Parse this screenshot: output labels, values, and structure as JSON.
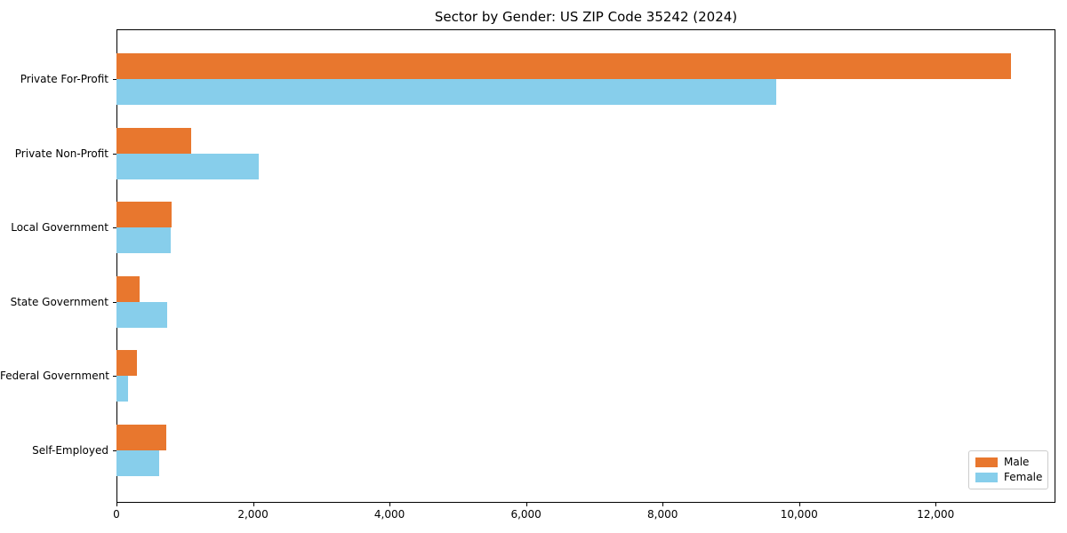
{
  "chart_data": {
    "type": "bar",
    "orientation": "horizontal",
    "title": "Sector by Gender: US ZIP Code 35242 (2024)",
    "categories": [
      "Private For-Profit",
      "Private Non-Profit",
      "Local Government",
      "State Government",
      "Federal Government",
      "Self-Employed"
    ],
    "series": [
      {
        "name": "Male",
        "color": "#e8772e",
        "values": [
          13100,
          1100,
          810,
          340,
          300,
          730
        ]
      },
      {
        "name": "Female",
        "color": "#87ceeb",
        "values": [
          9670,
          2080,
          800,
          740,
          165,
          620
        ]
      }
    ],
    "xlim": [
      0,
      13755
    ],
    "x_ticks": [
      0,
      2000,
      4000,
      6000,
      8000,
      10000,
      12000
    ],
    "x_tick_labels": [
      "0",
      "2,000",
      "4,000",
      "6,000",
      "8,000",
      "10,000",
      "12,000"
    ],
    "legend_position": "lower right",
    "grid": false,
    "axis_color": "#000000",
    "background_color": "#ffffff"
  }
}
